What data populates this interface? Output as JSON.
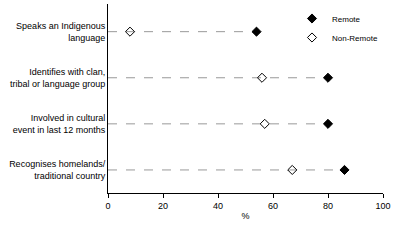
{
  "chart_data": {
    "type": "scatter",
    "orientation": "horizontal",
    "categories": [
      "Speaks an Indigenous language",
      "Identifies with clan, tribal or language group",
      "Involved in cultural event in last 12 months",
      "Recognises homelands/ traditional country"
    ],
    "series": [
      {
        "name": "Remote",
        "color": "#000000",
        "marker": "diamond",
        "values": [
          54,
          80,
          80,
          86
        ]
      },
      {
        "name": "Non-Remote",
        "color": "#000000",
        "marker": "diamond-open",
        "values": [
          8,
          56,
          57,
          67
        ]
      }
    ],
    "x_label": "%",
    "xlim": [
      0,
      100
    ],
    "xticks": [
      0,
      20,
      40,
      60,
      80,
      100
    ],
    "line_style": "dashed",
    "legend": "top-right",
    "grid": false
  }
}
